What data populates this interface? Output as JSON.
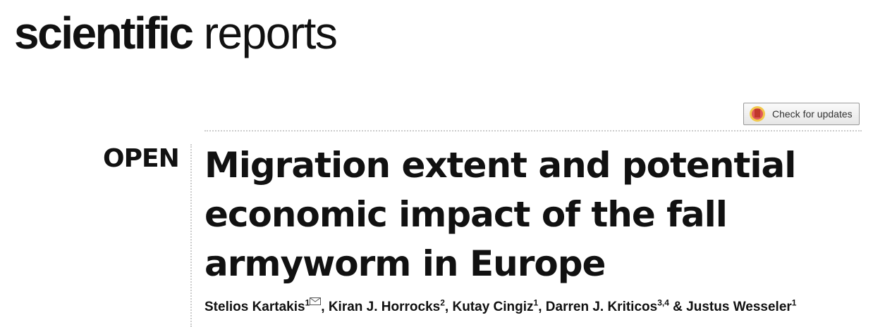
{
  "journal": [
    "scientific",
    "reports"
  ],
  "update_badge": "Check for updates",
  "access": "OPEN",
  "title_lines": [
    "Migration extent and potential",
    "economic impact of the fall",
    "armyworm in Europe"
  ],
  "authors": [
    {
      "name": "Stelios Kartakis",
      "affiliation": "1"
    },
    {
      "name": "Kiran J. Horrocks",
      "affiliation": "2"
    },
    {
      "name": "Kutay Cingiz",
      "affiliation": "1"
    },
    {
      "name": "Darren J. Kriticos",
      "affiliation": "3,4"
    },
    {
      "name": "Justus Wesseler",
      "affiliation": "1"
    }
  ],
  "separators": [
    ", ",
    ", ",
    ", ",
    " & "
  ]
}
